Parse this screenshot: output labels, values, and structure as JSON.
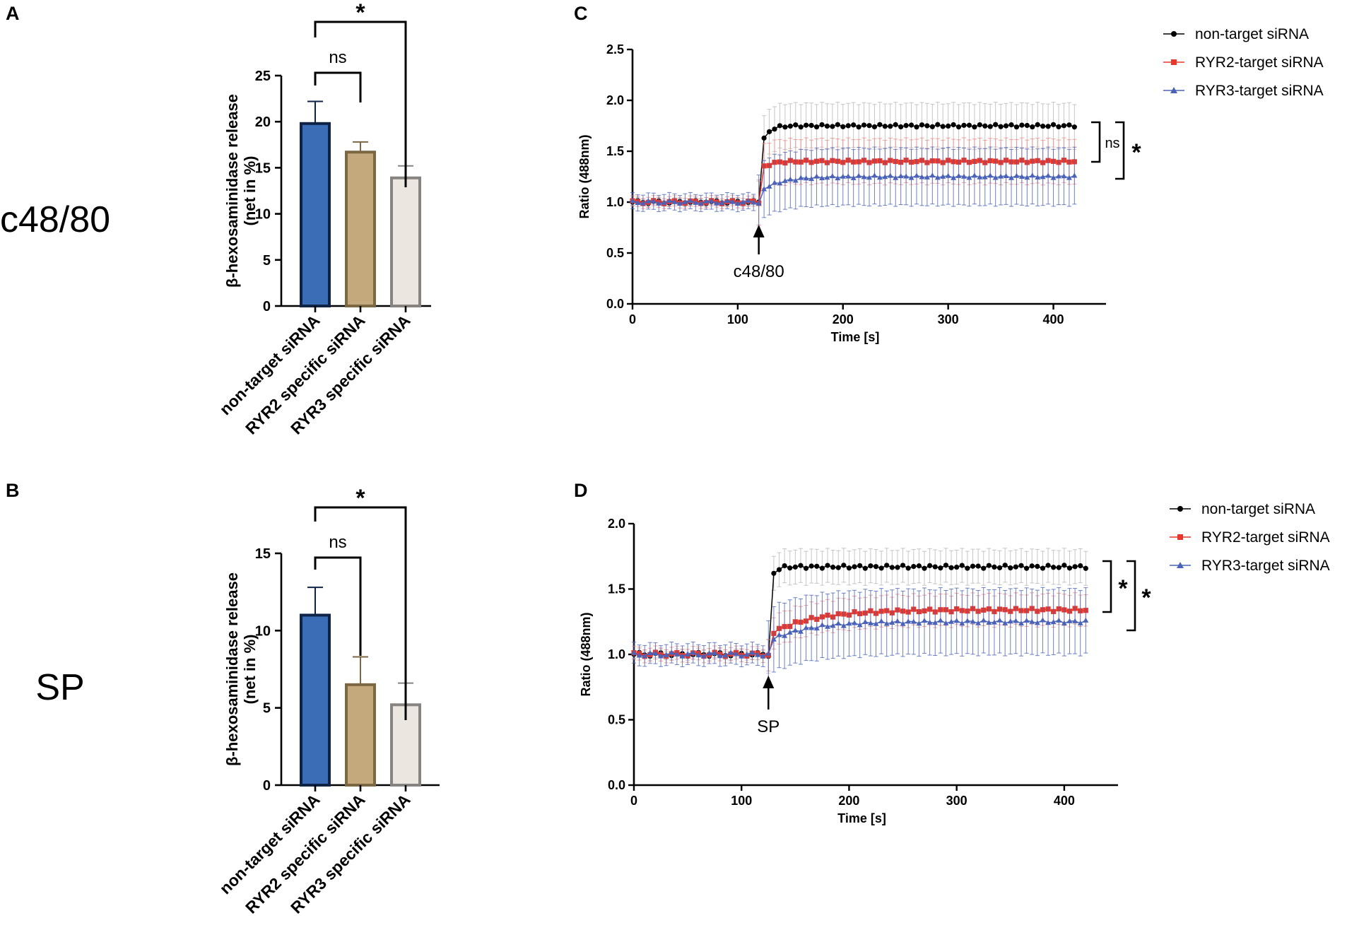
{
  "panels": {
    "A": "A",
    "B": "B",
    "C": "C",
    "D": "D"
  },
  "row_labels": {
    "top": "c48/80",
    "bottom": "SP"
  },
  "chart_data": [
    {
      "id": "A",
      "type": "bar",
      "title": "",
      "xlabel": "",
      "ylabel": "β-hexosaminidase release",
      "ylabel2": "(net in %)",
      "categories": [
        "non-target siRNA",
        "RYR2 specific siRNA",
        "RYR3 specific siRNA"
      ],
      "values": [
        19.8,
        16.7,
        13.9
      ],
      "errors": [
        2.4,
        1.1,
        1.3
      ],
      "colors": [
        "#3a6db5",
        "#c3a97c",
        "#ebe7e0"
      ],
      "edge_colors": [
        "#0f2347",
        "#7b6742",
        "#878380"
      ],
      "ylim": [
        0,
        25
      ],
      "yticks": [
        0,
        5,
        10,
        15,
        20,
        25
      ],
      "significance": [
        {
          "from": 0,
          "to": 1,
          "label": "ns"
        },
        {
          "from": 0,
          "to": 2,
          "label": "*"
        }
      ]
    },
    {
      "id": "B",
      "type": "bar",
      "title": "",
      "xlabel": "",
      "ylabel": "β-hexosaminidase release",
      "ylabel2": "(net in %)",
      "categories": [
        "non-target siRNA",
        "RYR2 specific siRNA",
        "RYR3 specific siRNA"
      ],
      "values": [
        11.0,
        6.5,
        5.2
      ],
      "errors": [
        1.8,
        1.8,
        1.4
      ],
      "colors": [
        "#3a6db5",
        "#c3a97c",
        "#ebe7e0"
      ],
      "edge_colors": [
        "#0f2347",
        "#7b6742",
        "#878380"
      ],
      "ylim": [
        0,
        15
      ],
      "yticks": [
        0,
        5,
        10,
        15
      ],
      "significance": [
        {
          "from": 0,
          "to": 1,
          "label": "ns"
        },
        {
          "from": 0,
          "to": 2,
          "label": "*"
        }
      ]
    },
    {
      "id": "C",
      "type": "line",
      "title": "",
      "xlabel": "Time [s]",
      "ylabel": "Ratio (488nm)",
      "xlim": [
        0,
        450
      ],
      "xticks": [
        0,
        100,
        200,
        300,
        400
      ],
      "ylim": [
        0,
        2.5
      ],
      "yticks": [
        "0.0",
        "0.5",
        "1.0",
        "1.5",
        "2.0",
        "2.5"
      ],
      "stimulus": {
        "label": "c48/80",
        "time": 120
      },
      "series": [
        {
          "name": "non-target siRNA",
          "color": "#000000",
          "err_color": "#b8b8b8",
          "marker": "circle",
          "baseline": 1.0,
          "plateau": 1.75,
          "err_base": 0.03,
          "err_plateau": 0.22,
          "peak": 1.45,
          "tau": 6
        },
        {
          "name": "RYR2-target siRNA",
          "color": "#e8362b",
          "err_color": "#f08a84",
          "marker": "square",
          "baseline": 1.0,
          "plateau": 1.4,
          "err_base": 0.05,
          "err_plateau": 0.22,
          "peak": 1.3,
          "tau": 8
        },
        {
          "name": "RYR3-target siRNA",
          "color": "#4a63b8",
          "err_color": "#4a63b8",
          "marker": "triangle",
          "baseline": 1.0,
          "plateau": 1.25,
          "err_base": 0.08,
          "err_plateau": 0.28,
          "peak": 1.1,
          "tau": 20
        }
      ],
      "significance": [
        {
          "label": "ns",
          "pair": [
            "non-target siRNA",
            "RYR2-target siRNA"
          ]
        },
        {
          "label": "*",
          "pair": [
            "non-target siRNA",
            "RYR3-target siRNA"
          ]
        }
      ]
    },
    {
      "id": "D",
      "type": "line",
      "title": "",
      "xlabel": "Time [s]",
      "ylabel": "Ratio (488nm)",
      "xlim": [
        0,
        450
      ],
      "xticks": [
        0,
        100,
        200,
        300,
        400
      ],
      "ylim": [
        0,
        2.0
      ],
      "yticks": [
        "0.0",
        "0.5",
        "1.0",
        "1.5",
        "2.0"
      ],
      "stimulus": {
        "label": "SP",
        "time": 125
      },
      "series": [
        {
          "name": "non-target siRNA",
          "color": "#000000",
          "err_color": "#b8b8b8",
          "marker": "circle",
          "baseline": 1.0,
          "plateau": 1.67,
          "err_base": 0.03,
          "err_plateau": 0.13,
          "peak": 1.5,
          "tau": 4
        },
        {
          "name": "RYR2-target siRNA",
          "color": "#e8362b",
          "err_color": "#f08a84",
          "marker": "square",
          "baseline": 1.0,
          "plateau": 1.34,
          "err_base": 0.05,
          "err_plateau": 0.12,
          "peak": 1.15,
          "tau": 40
        },
        {
          "name": "RYR3-target siRNA",
          "color": "#4a63b8",
          "err_color": "#4a63b8",
          "marker": "triangle",
          "baseline": 1.0,
          "plateau": 1.25,
          "err_base": 0.08,
          "err_plateau": 0.25,
          "peak": 1.1,
          "tau": 35
        }
      ],
      "significance": [
        {
          "label": "*",
          "pair": [
            "non-target siRNA",
            "RYR2-target siRNA"
          ]
        },
        {
          "label": "*",
          "pair": [
            "non-target siRNA",
            "RYR3-target siRNA"
          ]
        }
      ]
    }
  ]
}
